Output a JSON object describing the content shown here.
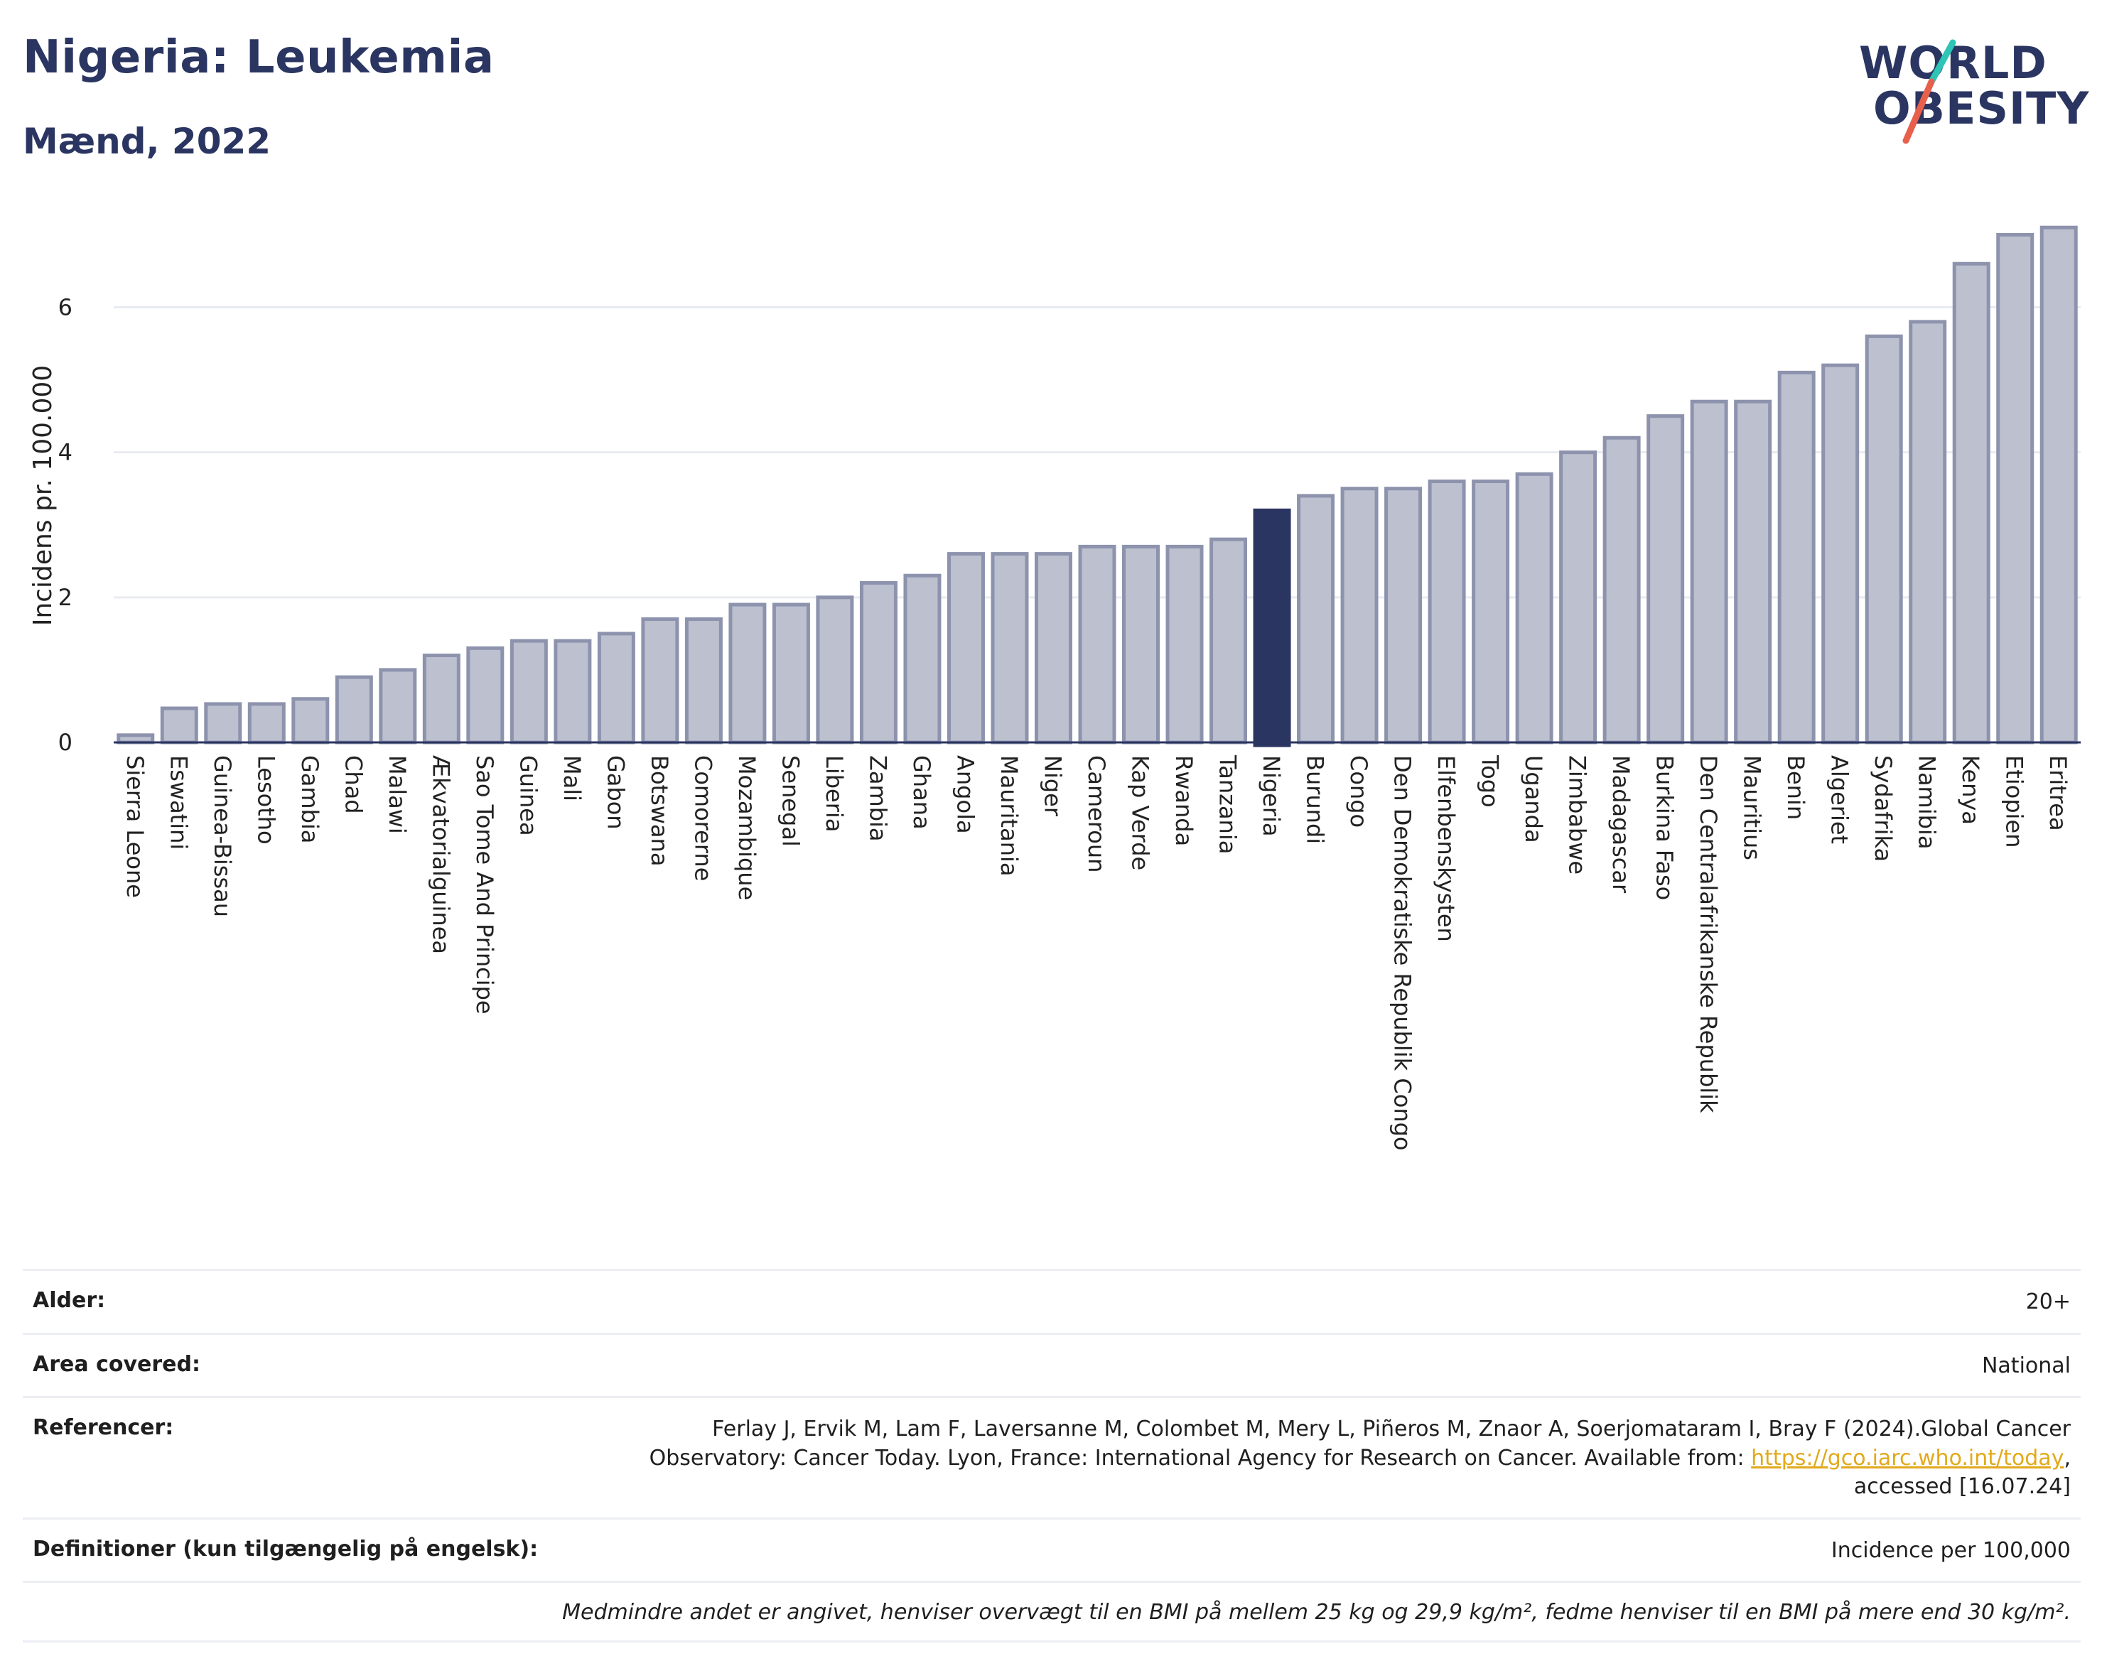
{
  "header": {
    "title": "Nigeria: Leukemia",
    "subtitle": "Mænd, 2022"
  },
  "logo": {
    "line1": "WORLD",
    "line2": "OBESITY",
    "accent_colors": [
      "#2ec4b6",
      "#e8604c"
    ]
  },
  "colors": {
    "bar": "#bcc0cf",
    "bar_stroke": "#8d93ad",
    "highlight": "#2b3561",
    "axis": "#2b3561",
    "grid": "#e9ebf2"
  },
  "chart_data": {
    "type": "bar",
    "title": "Nigeria: Leukemia",
    "subtitle": "Mænd, 2022",
    "ylabel": "Incidens pr. 100.000",
    "xlabel": "",
    "ylim": [
      0,
      7.2
    ],
    "yticks": [
      0,
      2,
      4,
      6
    ],
    "grid": true,
    "highlight": "Nigeria",
    "categories": [
      "Sierra Leone",
      "Eswatini",
      "Guinea-Bissau",
      "Lesotho",
      "Gambia",
      "Chad",
      "Malawi",
      "Ækvatorialguinea",
      "Sao Tome And Principe",
      "Guinea",
      "Mali",
      "Gabon",
      "Botswana",
      "Comorerne",
      "Mozambique",
      "Senegal",
      "Liberia",
      "Zambia",
      "Ghana",
      "Angola",
      "Mauritania",
      "Niger",
      "Cameroun",
      "Kap Verde",
      "Rwanda",
      "Tanzania",
      "Nigeria",
      "Burundi",
      "Congo",
      "Den Demokratiske Republik Congo",
      "Elfenbenskysten",
      "Togo",
      "Uganda",
      "Zimbabwe",
      "Madagascar",
      "Burkina Faso",
      "Den Centralafrikanske Republik",
      "Mauritius",
      "Benin",
      "Algeriet",
      "Sydafrika",
      "Namibia",
      "Kenya",
      "Etiopien",
      "Eritrea"
    ],
    "values": [
      0.1,
      0.47,
      0.53,
      0.53,
      0.6,
      0.9,
      1.0,
      1.2,
      1.3,
      1.4,
      1.4,
      1.5,
      1.7,
      1.7,
      1.9,
      1.9,
      2.0,
      2.2,
      2.3,
      2.6,
      2.6,
      2.6,
      2.7,
      2.7,
      2.7,
      2.8,
      3.2,
      3.4,
      3.5,
      3.5,
      3.6,
      3.6,
      3.7,
      4.0,
      4.2,
      4.5,
      4.7,
      4.7,
      5.1,
      5.2,
      5.6,
      5.8,
      6.6,
      7.0,
      7.1
    ]
  },
  "meta": {
    "rows": [
      {
        "key": "Alder:",
        "value": "20+"
      },
      {
        "key": "Area covered:",
        "value": "National"
      },
      {
        "key": "Referencer:",
        "value_prefix": "Ferlay J, Ervik M, Lam F, Laversanne M, Colombet M, Mery L, Piñeros M, Znaor A, Soerjomataram I, Bray F (2024).Global Cancer Observatory: Cancer Today. Lyon, France: International Agency for Research on Cancer. Available from: ",
        "link": "https://gco.iarc.who.int/today",
        "value_suffix": ", accessed [16.07.24]"
      },
      {
        "key": "Definitioner (kun tilgængelig på engelsk):",
        "value": "Incidence per 100,000"
      }
    ],
    "note": "Medmindre andet er angivet, henviser overvægt til en BMI på mellem 25 kg og 29,9 kg/m², fedme henviser til en BMI på mere end 30 kg/m²."
  }
}
